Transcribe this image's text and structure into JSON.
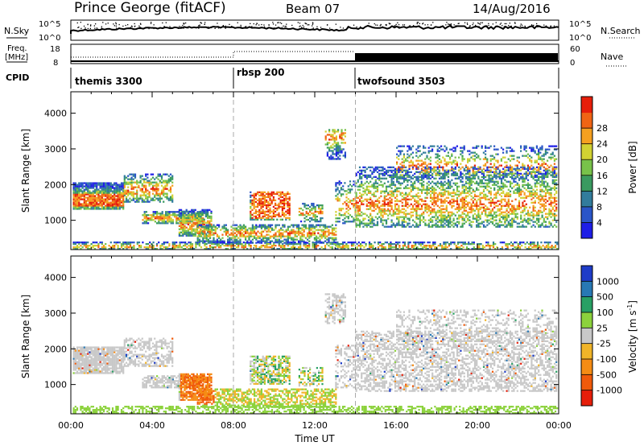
{
  "header": {
    "station": "Prince George (fitACF)",
    "beam": "Beam 07",
    "date": "14/Aug/2016"
  },
  "strip_panels": {
    "nsky": {
      "label": "N.Sky",
      "scale_top": "10^5",
      "scale_bottom": "10^0"
    },
    "nsearch": {
      "label": "N.Search",
      "scale_top": "10^5",
      "scale_bottom": "10^0"
    },
    "freq": {
      "label_line1": "Freq.",
      "label_line2": "[MHz]",
      "tick_top": "18",
      "tick_bottom": "8"
    },
    "nave": {
      "label": "Nave",
      "tick_top": "60",
      "tick_bottom": "0"
    },
    "cpid": {
      "label": "CPID",
      "modes": [
        {
          "name": "themis 3300",
          "start_hour": 0
        },
        {
          "name": "rbsp 200",
          "start_hour": 8
        },
        {
          "name": "twofsound 3503",
          "start_hour": 14
        }
      ]
    }
  },
  "chart_data": [
    {
      "type": "heatmap",
      "name": "power",
      "ylabel": "Slant Range [km]",
      "xlim": [
        0,
        24
      ],
      "ylim": [
        180,
        4600
      ],
      "yticks": [
        "1000",
        "2000",
        "3000",
        "4000"
      ],
      "colorbar": {
        "label": "Power [dB]",
        "ticks": [
          "4",
          "8",
          "12",
          "16",
          "20",
          "24",
          "28"
        ],
        "colors": [
          "#1e1ee6",
          "#2a55c8",
          "#327c9c",
          "#3a9a60",
          "#78c24a",
          "#d2d232",
          "#f5a020",
          "#f06414",
          "#e61e0a"
        ]
      }
    },
    {
      "type": "heatmap",
      "name": "velocity",
      "ylabel": "Slant Range [km]",
      "xlabel": "Time UT",
      "xlim": [
        0,
        24
      ],
      "ylim": [
        180,
        4600
      ],
      "xticks": [
        "00:00",
        "04:00",
        "08:00",
        "12:00",
        "16:00",
        "20:00",
        "00:00"
      ],
      "yticks": [
        "1000",
        "2000",
        "3000",
        "4000"
      ],
      "colorbar": {
        "label": "Velocity [m s^-1]",
        "ticks": [
          "1000",
          "500",
          "100",
          "25",
          "-25",
          "-100",
          "-500",
          "-1000"
        ],
        "colors": [
          "#1e3cc8",
          "#2878b4",
          "#28a064",
          "#8cd23c",
          "#c8c8c8",
          "#f0b428",
          "#f58c14",
          "#f05a0a",
          "#e61e0a"
        ]
      }
    }
  ]
}
